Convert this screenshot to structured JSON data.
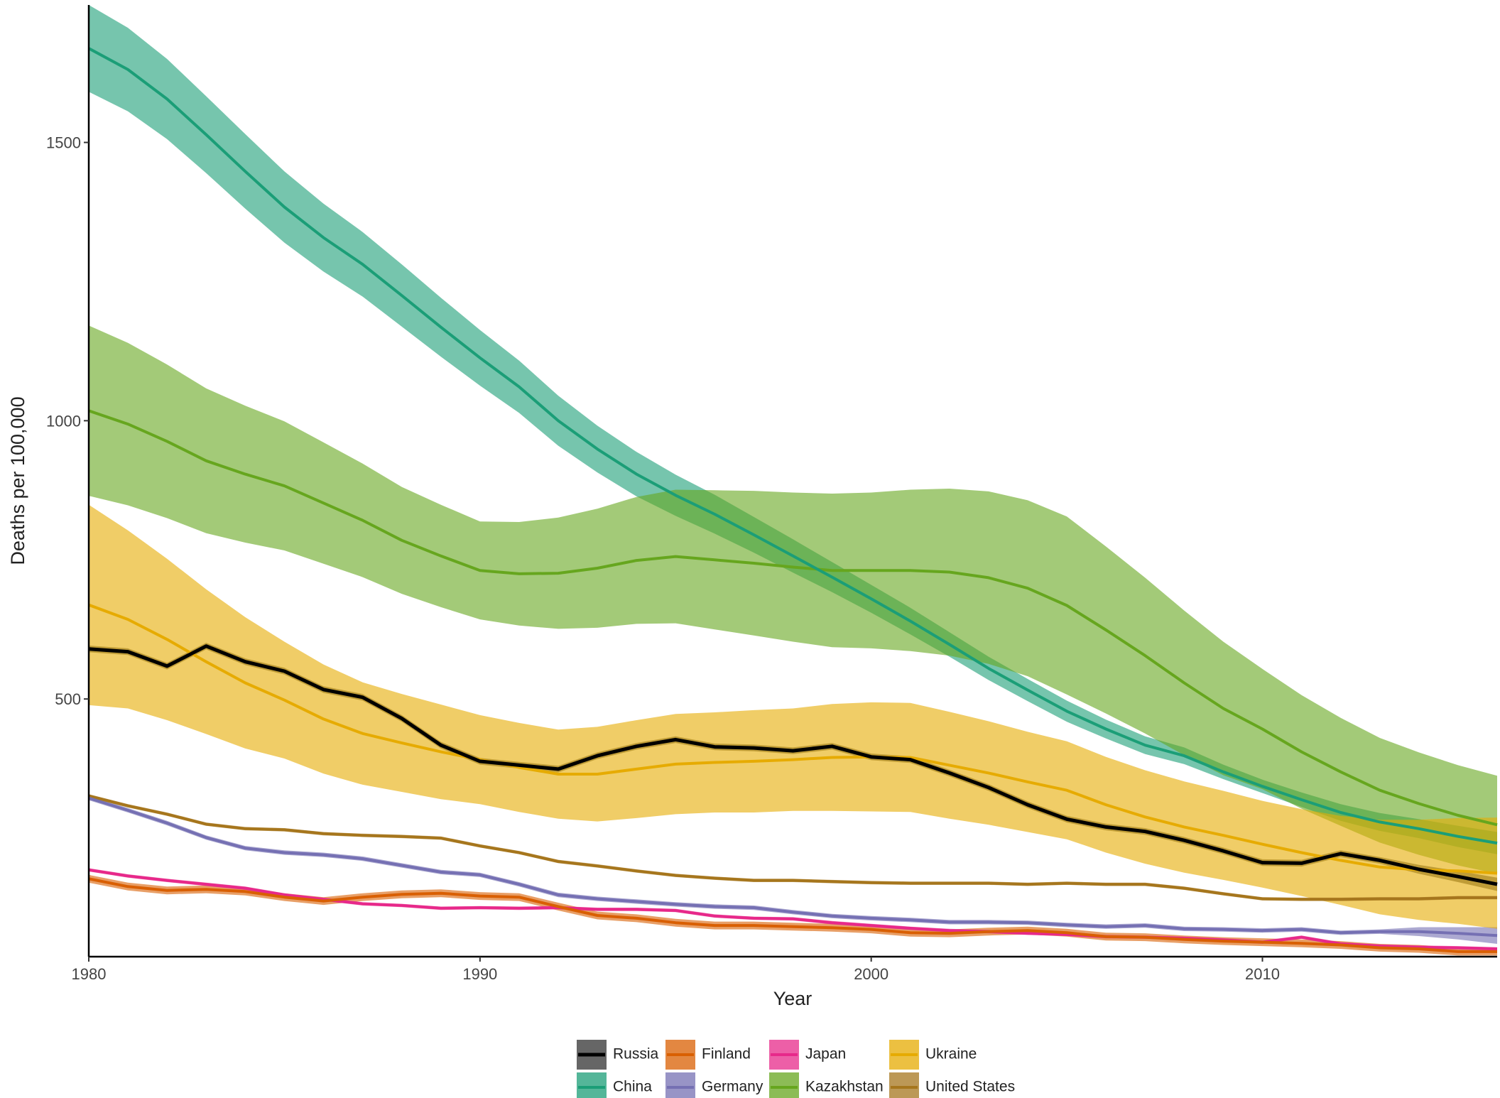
{
  "chart_data": {
    "type": "line",
    "xlabel": "Year",
    "ylabel": "Deaths per 100,000",
    "x": [
      1980,
      1981,
      1982,
      1983,
      1984,
      1985,
      1986,
      1987,
      1988,
      1989,
      1990,
      1991,
      1992,
      1993,
      1994,
      1995,
      1996,
      1997,
      1998,
      1999,
      2000,
      2001,
      2002,
      2003,
      2004,
      2005,
      2006,
      2007,
      2008,
      2009,
      2010,
      2011,
      2012,
      2013,
      2014,
      2015,
      2016
    ],
    "xlim": [
      1980,
      2016
    ],
    "xticks": [
      1980,
      1990,
      2000,
      2010
    ],
    "ylim": [
      37,
      1747
    ],
    "yticks": [
      500,
      1000,
      1500
    ],
    "grid": false,
    "legend": "bottom",
    "series": [
      {
        "name": "Russia",
        "color": "#000000",
        "band_color": "#333333",
        "values": [
          590,
          585,
          559,
          595,
          567,
          550,
          517,
          503,
          465,
          417,
          388,
          381,
          374,
          398,
          415,
          427,
          414,
          412,
          407,
          415,
          396,
          391,
          367,
          341,
          310,
          284,
          270,
          262,
          246,
          227,
          206,
          205,
          222,
          210,
          194,
          181,
          167
        ],
        "upper": [
          596,
          591,
          565,
          601,
          573,
          556,
          523,
          509,
          471,
          423,
          394,
          387,
          380,
          404,
          421,
          433,
          420,
          418,
          413,
          421,
          402,
          397,
          373,
          347,
          316,
          290,
          276,
          268,
          252,
          233,
          212,
          211,
          228,
          216,
          202,
          191,
          179
        ],
        "lower": [
          584,
          579,
          553,
          589,
          561,
          544,
          511,
          497,
          459,
          411,
          382,
          375,
          368,
          392,
          409,
          421,
          408,
          406,
          401,
          409,
          390,
          385,
          361,
          335,
          304,
          278,
          264,
          256,
          240,
          221,
          200,
          199,
          216,
          204,
          186,
          171,
          155
        ]
      },
      {
        "name": "China",
        "color": "#1b9e77",
        "band_color": "#1b9e77",
        "values": [
          1669,
          1631,
          1578,
          1514,
          1448,
          1384,
          1329,
          1281,
          1225,
          1168,
          1113,
          1061,
          1000,
          949,
          904,
          866,
          832,
          795,
          757,
          719,
          680,
          640,
          598,
          555,
          516,
          478,
          446,
          417,
          398,
          369,
          343,
          319,
          296,
          279,
          267,
          253,
          241
        ],
        "upper": [
          1747,
          1706,
          1650,
          1583,
          1515,
          1448,
          1390,
          1339,
          1281,
          1221,
          1163,
          1108,
          1045,
          991,
          944,
          903,
          867,
          827,
          787,
          746,
          705,
          664,
          620,
          576,
          536,
          497,
          463,
          433,
          413,
          382,
          355,
          332,
          311,
          295,
          284,
          272,
          261
        ],
        "lower": [
          1591,
          1556,
          1506,
          1445,
          1381,
          1320,
          1268,
          1223,
          1169,
          1115,
          1063,
          1014,
          955,
          907,
          864,
          829,
          797,
          763,
          727,
          692,
          655,
          616,
          576,
          534,
          496,
          459,
          429,
          401,
          383,
          356,
          331,
          306,
          281,
          263,
          250,
          234,
          221
        ]
      },
      {
        "name": "Finland",
        "color": "#d95f02",
        "band_color": "#d95f02",
        "values": [
          177,
          163,
          156,
          158,
          154,
          144,
          137,
          144,
          149,
          151,
          146,
          144,
          127,
          111,
          106,
          98,
          93,
          93,
          91,
          89,
          86,
          80,
          79,
          82,
          84,
          80,
          73,
          72,
          68,
          65,
          63,
          61,
          58,
          53,
          51,
          46,
          46
        ],
        "upper": [
          184,
          170,
          163,
          165,
          161,
          151,
          144,
          151,
          156,
          158,
          153,
          151,
          134,
          118,
          113,
          105,
          100,
          100,
          98,
          96,
          93,
          87,
          86,
          89,
          91,
          87,
          80,
          79,
          75,
          72,
          70,
          68,
          65,
          60,
          58,
          53,
          53
        ],
        "lower": [
          170,
          156,
          149,
          151,
          147,
          137,
          130,
          137,
          142,
          144,
          139,
          137,
          120,
          104,
          99,
          91,
          86,
          86,
          84,
          82,
          79,
          73,
          72,
          75,
          77,
          73,
          66,
          65,
          61,
          58,
          56,
          54,
          51,
          46,
          44,
          39,
          39
        ]
      },
      {
        "name": "Germany",
        "color": "#7570b3",
        "band_color": "#7570b3",
        "values": [
          322,
          300,
          277,
          251,
          232,
          224,
          220,
          213,
          201,
          189,
          184,
          167,
          148,
          141,
          136,
          131,
          127,
          125,
          117,
          110,
          106,
          103,
          99,
          99,
          98,
          94,
          91,
          93,
          87,
          86,
          84,
          86,
          80,
          82,
          82,
          79,
          75
        ],
        "upper": [
          326,
          304,
          281,
          255,
          236,
          228,
          224,
          217,
          205,
          193,
          188,
          171,
          152,
          145,
          140,
          135,
          131,
          129,
          121,
          114,
          110,
          107,
          103,
          103,
          102,
          98,
          95,
          97,
          91,
          90,
          88,
          90,
          84,
          86,
          90,
          90,
          90
        ],
        "lower": [
          318,
          296,
          273,
          247,
          228,
          220,
          216,
          209,
          197,
          185,
          180,
          163,
          144,
          137,
          132,
          127,
          123,
          121,
          113,
          106,
          102,
          99,
          95,
          95,
          94,
          90,
          87,
          89,
          83,
          82,
          80,
          82,
          76,
          78,
          74,
          68,
          60
        ]
      },
      {
        "name": "Japan",
        "color": "#e7298a",
        "band_color": "#e7298a",
        "values": [
          193,
          182,
          174,
          167,
          160,
          148,
          140,
          132,
          129,
          124,
          125,
          124,
          125,
          122,
          122,
          120,
          110,
          106,
          105,
          98,
          93,
          88,
          84,
          82,
          79,
          77,
          73,
          72,
          70,
          67,
          63,
          72,
          60,
          56,
          54,
          53,
          51
        ],
        "upper": [
          196,
          185,
          177,
          170,
          163,
          151,
          143,
          135,
          132,
          127,
          128,
          127,
          128,
          125,
          125,
          123,
          113,
          109,
          108,
          101,
          96,
          91,
          87,
          85,
          82,
          80,
          76,
          75,
          73,
          70,
          66,
          75,
          63,
          59,
          57,
          56,
          54
        ],
        "lower": [
          190,
          179,
          171,
          164,
          157,
          145,
          137,
          129,
          126,
          121,
          122,
          121,
          122,
          119,
          119,
          117,
          107,
          103,
          102,
          95,
          90,
          85,
          81,
          79,
          76,
          74,
          70,
          69,
          67,
          64,
          60,
          69,
          57,
          53,
          51,
          50,
          48
        ]
      },
      {
        "name": "Kazakhstan",
        "color": "#66a61e",
        "band_color": "#66a61e",
        "values": [
          1018,
          994,
          963,
          928,
          904,
          883,
          852,
          821,
          785,
          757,
          731,
          725,
          726,
          735,
          749,
          756,
          750,
          744,
          737,
          731,
          731,
          731,
          728,
          718,
          699,
          668,
          624,
          578,
          529,
          483,
          446,
          405,
          369,
          336,
          312,
          291,
          274
        ],
        "upper": [
          1171,
          1140,
          1101,
          1058,
          1027,
          999,
          961,
          923,
          881,
          849,
          819,
          818,
          826,
          842,
          863,
          876,
          875,
          874,
          871,
          869,
          871,
          876,
          878,
          873,
          857,
          828,
          774,
          718,
          659,
          603,
          554,
          507,
          466,
          430,
          404,
          381,
          362
        ],
        "lower": [
          865,
          848,
          825,
          798,
          781,
          767,
          743,
          719,
          689,
          665,
          643,
          632,
          626,
          628,
          635,
          636,
          625,
          614,
          603,
          593,
          591,
          586,
          578,
          563,
          541,
          508,
          474,
          438,
          399,
          363,
          338,
          303,
          272,
          242,
          220,
          201,
          186
        ]
      },
      {
        "name": "Ukraine",
        "color": "#e6ab02",
        "band_color": "#e6ab02",
        "values": [
          669,
          643,
          607,
          567,
          529,
          498,
          464,
          438,
          421,
          405,
          391,
          377,
          365,
          365,
          374,
          383,
          386,
          388,
          391,
          395,
          396,
          395,
          381,
          367,
          351,
          336,
          310,
          288,
          270,
          255,
          239,
          224,
          210,
          198,
          193,
          191,
          187
        ],
        "upper": [
          849,
          803,
          752,
          697,
          647,
          603,
          562,
          530,
          509,
          490,
          471,
          457,
          445,
          450,
          462,
          473,
          476,
          480,
          483,
          491,
          494,
          493,
          477,
          460,
          441,
          424,
          396,
          372,
          352,
          335,
          317,
          302,
          290,
          283,
          283,
          286,
          287
        ],
        "lower": [
          489,
          483,
          462,
          437,
          411,
          393,
          366,
          346,
          333,
          320,
          311,
          297,
          285,
          280,
          286,
          293,
          296,
          296,
          299,
          299,
          298,
          297,
          285,
          274,
          261,
          248,
          224,
          204,
          188,
          175,
          161,
          146,
          130,
          113,
          103,
          96,
          87
        ]
      },
      {
        "name": "United States",
        "color": "#a6761d",
        "band_color": "#a6761d",
        "values": [
          326,
          308,
          293,
          275,
          267,
          265,
          258,
          255,
          253,
          250,
          236,
          224,
          208,
          200,
          191,
          183,
          178,
          174,
          174,
          172,
          170,
          169,
          169,
          169,
          167,
          169,
          167,
          167,
          160,
          150,
          141,
          140,
          140,
          141,
          141,
          143,
          143
        ],
        "upper": [
          329,
          311,
          296,
          278,
          270,
          268,
          261,
          258,
          256,
          253,
          239,
          227,
          211,
          203,
          194,
          186,
          181,
          177,
          177,
          175,
          173,
          172,
          172,
          172,
          170,
          172,
          170,
          170,
          163,
          153,
          144,
          143,
          143,
          144,
          144,
          146,
          146
        ],
        "lower": [
          323,
          305,
          290,
          272,
          264,
          262,
          255,
          252,
          250,
          247,
          233,
          221,
          205,
          197,
          188,
          180,
          175,
          171,
          171,
          169,
          167,
          166,
          166,
          166,
          164,
          166,
          164,
          164,
          157,
          147,
          138,
          137,
          137,
          138,
          138,
          140,
          140
        ]
      }
    ]
  }
}
